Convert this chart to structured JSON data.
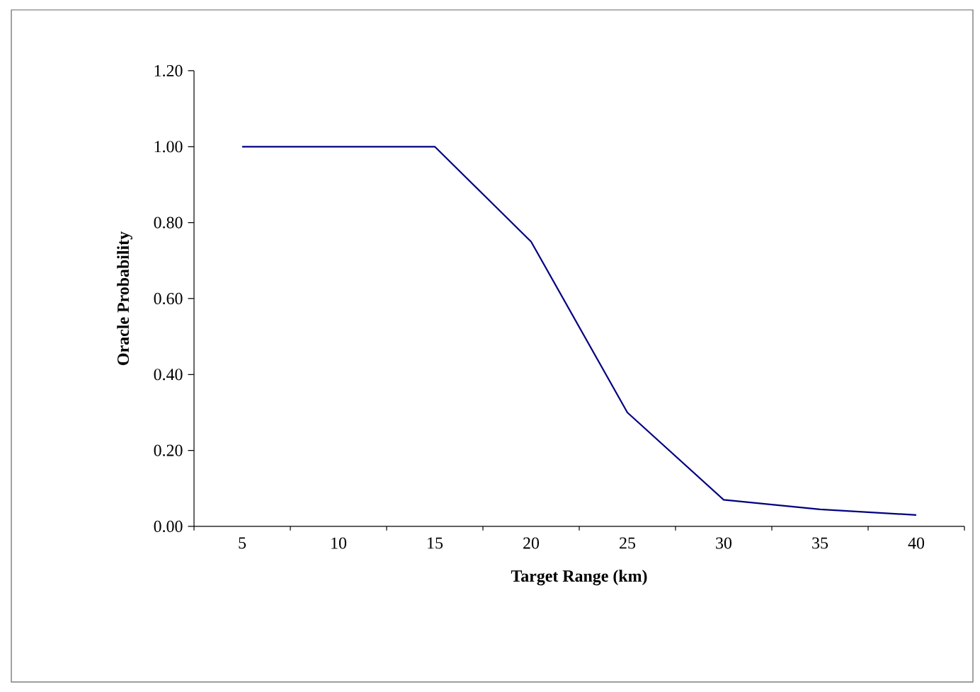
{
  "chart_data": {
    "type": "line",
    "xlabel": "Target Range (km)",
    "ylabel": "Oracle Probability",
    "categories": [
      "5",
      "10",
      "15",
      "20",
      "25",
      "30",
      "35",
      "40"
    ],
    "series": [
      {
        "color": "#000080",
        "values": [
          1.0,
          1.0,
          1.0,
          0.75,
          0.3,
          0.07,
          0.045,
          0.03
        ]
      }
    ],
    "ylim": [
      0,
      1.2
    ],
    "yticks": [
      {
        "value": 0,
        "label": "0.00"
      },
      {
        "value": 0.2,
        "label": "0.20"
      },
      {
        "value": 0.4,
        "label": "0.40"
      },
      {
        "value": 0.6,
        "label": "0.60"
      },
      {
        "value": 0.8,
        "label": "0.80"
      },
      {
        "value": 1.0,
        "label": "1.00"
      },
      {
        "value": 1.2,
        "label": "1.20"
      }
    ],
    "grid": false,
    "marker": "none",
    "line_style": "solid"
  }
}
